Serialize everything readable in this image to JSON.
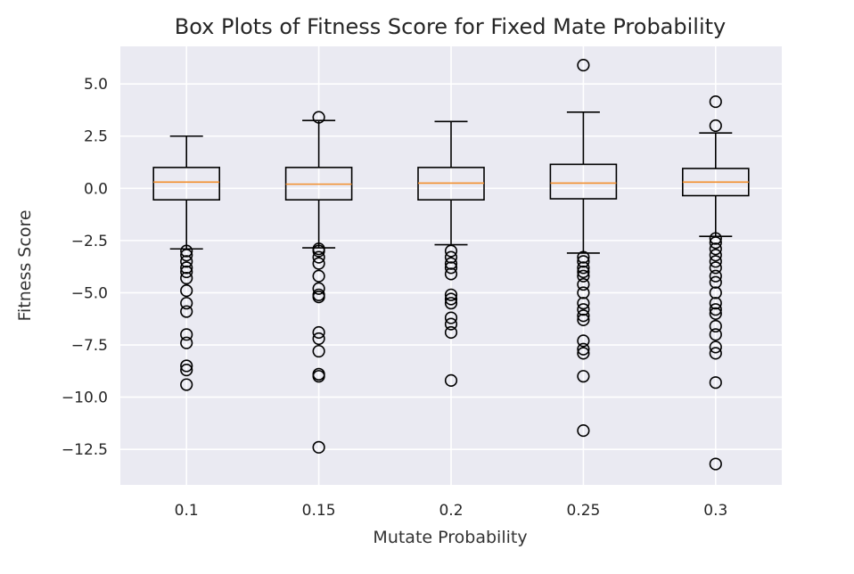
{
  "chart_data": {
    "type": "box",
    "title": "Box Plots of Fitness Score for Fixed Mate Probability",
    "xlabel": "Mutate Probability",
    "ylabel": "Fitness Score",
    "categories": [
      "0.1",
      "0.15",
      "0.2",
      "0.25",
      "0.3"
    ],
    "ylim": [
      -14.2,
      6.8
    ],
    "yticks": [
      5.0,
      2.5,
      0.0,
      -2.5,
      -5.0,
      -7.5,
      -10.0,
      -12.5
    ],
    "ytick_labels": [
      "5.0",
      "2.5",
      "0.0",
      "−2.5",
      "−5.0",
      "−7.5",
      "−10.0",
      "−12.5"
    ],
    "grid": true,
    "colors": {
      "background": "#eaeaf2",
      "grid": "#ffffff",
      "box": "#000000",
      "median": "#f28e2b"
    },
    "boxes": [
      {
        "category": "0.1",
        "whisker_low": -2.9,
        "q1": -0.55,
        "median": 0.3,
        "q3": 1.0,
        "whisker_high": 2.5,
        "fliers": [
          -3.0,
          -3.2,
          -3.5,
          -3.8,
          -4.0,
          -4.3,
          -4.9,
          -5.5,
          -5.9,
          -7.0,
          -7.4,
          -8.5,
          -8.7,
          -9.4
        ]
      },
      {
        "category": "0.15",
        "whisker_low": -2.85,
        "q1": -0.55,
        "median": 0.2,
        "q3": 1.0,
        "whisker_high": 3.25,
        "fliers": [
          3.4,
          -2.9,
          -3.0,
          -3.3,
          -3.6,
          -4.2,
          -4.8,
          -5.1,
          -5.2,
          -6.9,
          -7.2,
          -7.8,
          -8.9,
          -9.0,
          -12.4
        ]
      },
      {
        "category": "0.2",
        "whisker_low": -2.7,
        "q1": -0.55,
        "median": 0.25,
        "q3": 1.0,
        "whisker_high": 3.2,
        "fliers": [
          -3.0,
          -3.3,
          -3.6,
          -3.8,
          -4.1,
          -5.1,
          -5.3,
          -5.5,
          -6.2,
          -6.5,
          -6.9,
          -9.2
        ]
      },
      {
        "category": "0.25",
        "whisker_low": -3.1,
        "q1": -0.5,
        "median": 0.25,
        "q3": 1.15,
        "whisker_high": 3.65,
        "fliers": [
          5.9,
          -3.3,
          -3.5,
          -3.8,
          -4.0,
          -4.2,
          -4.6,
          -5.0,
          -5.5,
          -5.8,
          -6.1,
          -6.3,
          -7.3,
          -7.7,
          -7.9,
          -9.0,
          -11.6
        ]
      },
      {
        "category": "0.3",
        "whisker_low": -2.3,
        "q1": -0.35,
        "median": 0.3,
        "q3": 0.95,
        "whisker_high": 2.65,
        "fliers": [
          4.15,
          3.0,
          -2.4,
          -2.6,
          -2.9,
          -3.2,
          -3.5,
          -3.8,
          -4.2,
          -4.5,
          -5.0,
          -5.5,
          -5.8,
          -6.0,
          -6.6,
          -7.0,
          -7.6,
          -7.9,
          -9.3,
          -13.2
        ]
      }
    ]
  }
}
